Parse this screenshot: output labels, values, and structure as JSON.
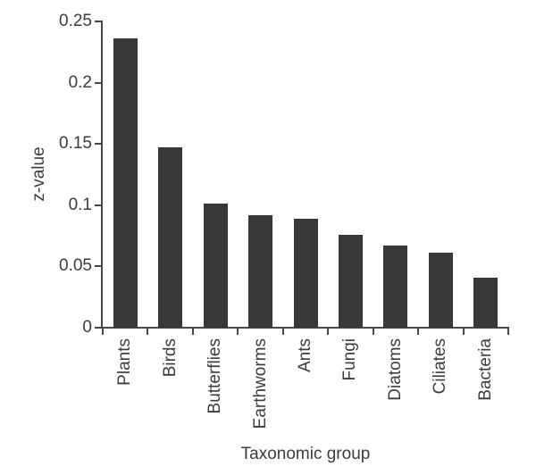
{
  "figure": {
    "background": "#ffffff"
  },
  "chart_data": {
    "type": "bar",
    "title": "",
    "xlabel": "Taxonomic group",
    "ylabel": "z-value",
    "categories": [
      "Plants",
      "Birds",
      "Butterflies",
      "Earthworms",
      "Ants",
      "Fungi",
      "Diatoms",
      "Ciliates",
      "Bacteria"
    ],
    "values": [
      0.236,
      0.147,
      0.101,
      0.092,
      0.089,
      0.076,
      0.067,
      0.061,
      0.041
    ],
    "ylim": [
      0,
      0.25
    ],
    "yticks": [
      0,
      0.05,
      0.1,
      0.15,
      0.2,
      0.25
    ],
    "ytick_labels": [
      "0",
      "0.05",
      "0.1",
      "0.15",
      "0.2",
      "0.25"
    ],
    "grid": false,
    "legend": "none",
    "bar_color": "#383838",
    "axis_color": "#474747",
    "text_color": "#3c3c3c"
  }
}
